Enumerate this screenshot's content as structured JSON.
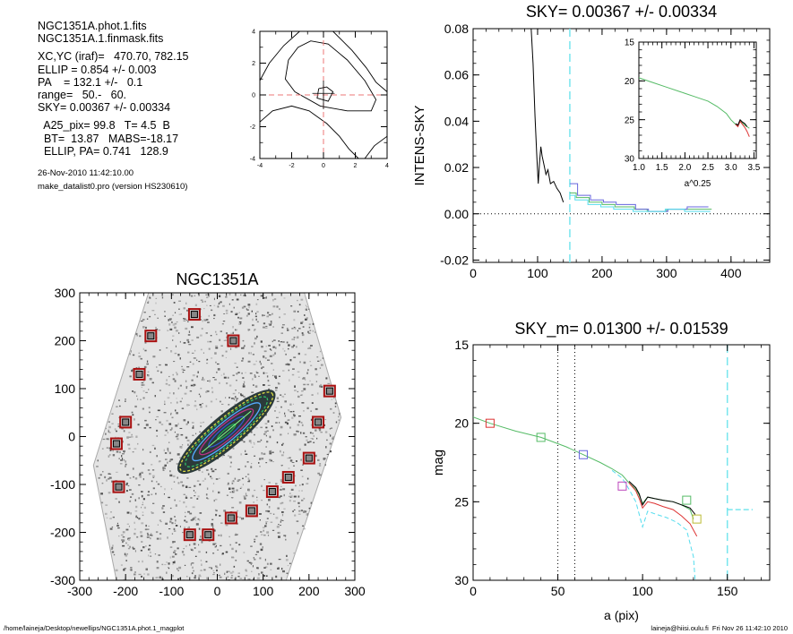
{
  "header": {
    "lines": [
      "NGC1351A.phot.1.fits",
      "NGC1351A.1.finmask.fits",
      "",
      "XC,YC (iraf)=   470.70, 782.15",
      "ELLIP = 0.854 +/- 0.003",
      "PA    = 132.1 +/-   0.1",
      "range=   50.-   60.",
      "SKY= 0.00367 +/- 0.00334",
      "",
      "  A25_pix= 99.8   T= 4.5  B",
      "  BT=  13.87   MABS=-18.17",
      "  ELLIP, PA= 0.741   128.9"
    ],
    "date": "26-Nov-2010 11:42:10.00",
    "program": "make_datalist0.pro (version HS230610)"
  },
  "footer": {
    "left": "/home/laineja/Desktop/newellips/NGC1351A.phot.1_magplot",
    "right": "laineja@hiisi.oulu.fi  Fri Nov 26 11:42:10 2010"
  },
  "chart_data": [
    {
      "id": "center",
      "type": "contour",
      "title": "",
      "xlim": [
        -4,
        4
      ],
      "ylim": [
        -4,
        4
      ],
      "xticks": [
        "-4",
        "-2",
        "0",
        "2",
        "4"
      ],
      "yticks": [
        "-4",
        "-2",
        "0",
        "2",
        "4"
      ],
      "crosshair": {
        "x": 0,
        "y": 0,
        "color": "#ee7777"
      },
      "contours": [
        [
          [
            -0.3,
            0.4
          ],
          [
            0.2,
            0.5
          ],
          [
            0.6,
            0.2
          ],
          [
            0.3,
            -0.4
          ],
          [
            -0.4,
            -0.2
          ],
          [
            -0.3,
            0.4
          ]
        ],
        [
          [
            -2.2,
            2.2
          ],
          [
            -1.6,
            3.0
          ],
          [
            -0.8,
            3.4
          ],
          [
            0.3,
            3.2
          ],
          [
            1.5,
            2.2
          ],
          [
            2.6,
            0.9
          ],
          [
            3.3,
            -0.3
          ],
          [
            3.0,
            -1.0
          ],
          [
            1.5,
            -1.0
          ],
          [
            -0.2,
            -0.7
          ],
          [
            -1.8,
            0.2
          ],
          [
            -2.4,
            1.0
          ],
          [
            -2.2,
            2.2
          ]
        ],
        [
          [
            -4,
            0.9
          ],
          [
            -3.4,
            2.0
          ],
          [
            -2.5,
            3.1
          ],
          [
            -1.5,
            4
          ]
        ],
        [
          [
            -4,
            -1.7
          ],
          [
            -3.2,
            -1.0
          ],
          [
            -2.0,
            -0.7
          ],
          [
            -0.9,
            -1.0
          ],
          [
            0.2,
            -1.8
          ],
          [
            1.0,
            -2.6
          ],
          [
            1.6,
            -3.4
          ],
          [
            2.2,
            -4
          ]
        ],
        [
          [
            0.6,
            4
          ],
          [
            1.8,
            2.8
          ],
          [
            2.7,
            1.7
          ],
          [
            3.3,
            0.8
          ],
          [
            4,
            0.2
          ]
        ],
        [
          [
            2.6,
            -4
          ],
          [
            3.2,
            -3.2
          ],
          [
            4,
            -2.6
          ]
        ]
      ],
      "cross_mark": [
        [
          -0.7,
          0.1
        ],
        [
          0.7,
          0.1
        ],
        [
          0,
          -0.9
        ],
        [
          0,
          0.9
        ]
      ]
    },
    {
      "id": "sky",
      "type": "line",
      "title": "SKY= 0.00367 +/- 0.00334",
      "xlabel": "",
      "ylabel": "INTENS-SKY",
      "xlim": [
        0,
        460
      ],
      "ylim": [
        -0.021,
        0.08
      ],
      "xticks": [
        0,
        100,
        200,
        300,
        400
      ],
      "yticks": [
        -0.02,
        0.0,
        0.02,
        0.04,
        0.06,
        0.08
      ],
      "ytick_labels": [
        "-0.02",
        "0.00",
        "0.02",
        "0.04",
        "0.06",
        "0.08"
      ],
      "vline": {
        "x": 150,
        "color": "#77e6ee"
      },
      "zero_line": true,
      "series": [
        {
          "color": "#000000",
          "x": [
            90,
            93,
            96,
            99,
            101,
            103,
            105,
            107,
            110,
            113,
            116,
            120,
            125,
            130,
            135,
            140
          ],
          "y": [
            0.08,
            0.065,
            0.042,
            0.024,
            0.013,
            0.022,
            0.029,
            0.025,
            0.021,
            0.017,
            0.019,
            0.013,
            0.014,
            0.011,
            0.009,
            0.005
          ]
        },
        {
          "color": "#55bb66",
          "x": [
            150,
            160,
            160,
            180,
            180,
            200,
            200,
            220,
            220,
            250,
            250,
            270,
            270,
            300,
            300,
            330,
            330,
            370
          ],
          "y": [
            0.009,
            0.009,
            0.007,
            0.007,
            0.005,
            0.005,
            0.004,
            0.004,
            0.003,
            0.003,
            0.002,
            0.002,
            0.001,
            0.001,
            0.002,
            0.002,
            0.002,
            0.002
          ]
        },
        {
          "color": "#6666dd",
          "x": [
            150,
            162,
            162,
            182,
            182,
            202,
            202,
            222,
            222,
            252,
            252,
            272,
            272,
            302,
            302,
            332,
            332,
            365
          ],
          "y": [
            0.013,
            0.013,
            0.008,
            0.008,
            0.006,
            0.006,
            0.005,
            0.005,
            0.004,
            0.004,
            0.002,
            0.002,
            0.001,
            0.001,
            0.002,
            0.002,
            0.003,
            0.003
          ]
        },
        {
          "color": "#55ddee",
          "x": [
            150,
            158,
            158,
            178,
            178,
            198,
            198,
            218,
            218,
            248,
            248,
            268,
            268,
            298,
            298,
            328,
            328,
            368
          ],
          "y": [
            0.008,
            0.008,
            0.006,
            0.006,
            0.004,
            0.004,
            0.003,
            0.003,
            0.002,
            0.002,
            0.001,
            0.001,
            0.001,
            0.001,
            0.002,
            0.002,
            0.001,
            0.001
          ]
        }
      ]
    },
    {
      "id": "inset",
      "type": "line",
      "title": "",
      "xlabel": "a^0.25",
      "ylabel": "",
      "xlim": [
        1.0,
        3.55
      ],
      "ylim": [
        30,
        15
      ],
      "xticks": [
        1.0,
        1.5,
        2.0,
        2.5,
        3.0,
        3.5
      ],
      "xtick_labels": [
        "1.0",
        "1.5",
        "2.0",
        "2.5",
        "3.0",
        "3.5"
      ],
      "yticks": [
        15,
        20,
        25,
        30
      ],
      "series": [
        {
          "color": "#55bb66",
          "x": [
            1.0,
            1.3,
            1.6,
            1.9,
            2.2,
            2.5,
            2.7,
            2.9,
            3.0,
            3.1,
            3.15,
            3.2,
            3.25,
            3.3,
            3.35,
            3.4
          ],
          "y": [
            19.6,
            20.2,
            20.8,
            21.4,
            22.0,
            22.6,
            23.3,
            24.2,
            25.0,
            25.6,
            25.8,
            25.1,
            25.4,
            25.7,
            25.9,
            26.1
          ]
        },
        {
          "color": "#dd3333",
          "x": [
            3.1,
            3.15,
            3.2,
            3.25,
            3.3,
            3.35,
            3.4
          ],
          "y": [
            25.6,
            25.9,
            25.2,
            25.6,
            26.0,
            26.5,
            27.2
          ]
        },
        {
          "color": "#000000",
          "x": [
            3.1,
            3.15,
            3.2,
            3.25,
            3.3,
            3.35
          ],
          "y": [
            25.5,
            25.7,
            25.0,
            25.3,
            25.5,
            25.9
          ]
        }
      ]
    },
    {
      "id": "image",
      "type": "scatter",
      "title": "NGC1351A",
      "xlim": [
        -300,
        300
      ],
      "ylim": [
        -300,
        300
      ],
      "xticks": [
        -300,
        -200,
        -100,
        0,
        100,
        200,
        300
      ],
      "yticks": [
        -300,
        -200,
        -100,
        0,
        100,
        200,
        300
      ],
      "frame_polygon": [
        [
          -150,
          300
        ],
        [
          -270,
          -60
        ],
        [
          -220,
          -300
        ],
        [
          150,
          -300
        ],
        [
          270,
          40
        ],
        [
          190,
          300
        ]
      ],
      "galaxy": {
        "cx": 20,
        "cy": 10,
        "pa_deg": 40,
        "semi_major": [
          25,
          50,
          75,
          95,
          115,
          130
        ],
        "ellipticity": 0.78,
        "colors": [
          "#22aa55",
          "#3355cc",
          "#bb3388",
          "#55aaff",
          "#33bb66",
          "#dddd44"
        ]
      },
      "squares": [
        [
          -50,
          255
        ],
        [
          -145,
          210
        ],
        [
          35,
          200
        ],
        [
          -170,
          130
        ],
        [
          -200,
          30
        ],
        [
          -220,
          -15
        ],
        [
          -215,
          -105
        ],
        [
          245,
          95
        ],
        [
          220,
          30
        ],
        [
          200,
          -45
        ],
        [
          155,
          -85
        ],
        [
          120,
          -115
        ],
        [
          75,
          -155
        ],
        [
          30,
          -170
        ],
        [
          -60,
          -205
        ],
        [
          -20,
          -205
        ]
      ],
      "square_color": "#aa1111"
    },
    {
      "id": "mag",
      "type": "line",
      "title": "SKY_m=  0.01300 +/- 0.01539",
      "xlabel": "a (pix)",
      "ylabel": "mag",
      "xlim": [
        0,
        175
      ],
      "ylim": [
        30,
        15
      ],
      "xticks": [
        0,
        50,
        100,
        150
      ],
      "yticks": [
        15,
        20,
        25,
        30
      ],
      "vlines_dotted": [
        50,
        60
      ],
      "vline_dashed": {
        "x": 150,
        "color": "#77e6ee"
      },
      "sky_level": {
        "x": [
          150,
          165
        ],
        "y": 25.5,
        "color": "#77e6ee"
      },
      "series": [
        {
          "color": "#55bb66",
          "x": [
            0,
            10,
            25,
            40,
            55,
            65,
            75,
            82,
            88,
            92,
            96,
            98,
            100,
            103,
            107,
            112,
            118,
            123,
            128,
            130
          ],
          "y": [
            19.6,
            20.0,
            20.5,
            20.9,
            21.5,
            22.0,
            22.5,
            22.9,
            23.3,
            23.8,
            24.2,
            24.6,
            25.1,
            24.7,
            24.8,
            24.9,
            25.0,
            25.2,
            25.5,
            26.1
          ]
        },
        {
          "color": "#dd3333",
          "x": [
            92,
            96,
            98,
            100,
            103,
            107,
            112,
            118,
            123,
            128,
            132
          ],
          "y": [
            23.8,
            24.3,
            24.8,
            25.4,
            25.0,
            25.1,
            25.3,
            25.5,
            25.9,
            26.4,
            27.2
          ]
        },
        {
          "color": "#000000",
          "x": [
            92,
            96,
            98,
            100,
            103,
            107,
            112,
            118,
            123,
            128,
            131
          ],
          "y": [
            23.7,
            24.1,
            24.5,
            25.2,
            24.7,
            24.8,
            24.9,
            25.0,
            25.2,
            25.4,
            25.8
          ]
        },
        {
          "color": "#55ddee",
          "x": [
            82,
            88,
            92,
            96,
            100,
            103,
            108,
            114,
            120,
            126,
            130,
            131
          ],
          "y": [
            23.0,
            23.5,
            24.2,
            25.0,
            26.6,
            25.6,
            25.8,
            26.0,
            26.3,
            26.8,
            28.5,
            30
          ]
        }
      ],
      "squares": [
        {
          "x": 10,
          "y": 20.0,
          "color": "#dd3333"
        },
        {
          "x": 40,
          "y": 20.9,
          "color": "#55bb66"
        },
        {
          "x": 65,
          "y": 22.0,
          "color": "#6666dd"
        },
        {
          "x": 88,
          "y": 24.0,
          "color": "#bb44bb"
        },
        {
          "x": 126,
          "y": 24.9,
          "color": "#55bb66"
        },
        {
          "x": 132,
          "y": 26.1,
          "color": "#bbbb33"
        }
      ]
    }
  ]
}
